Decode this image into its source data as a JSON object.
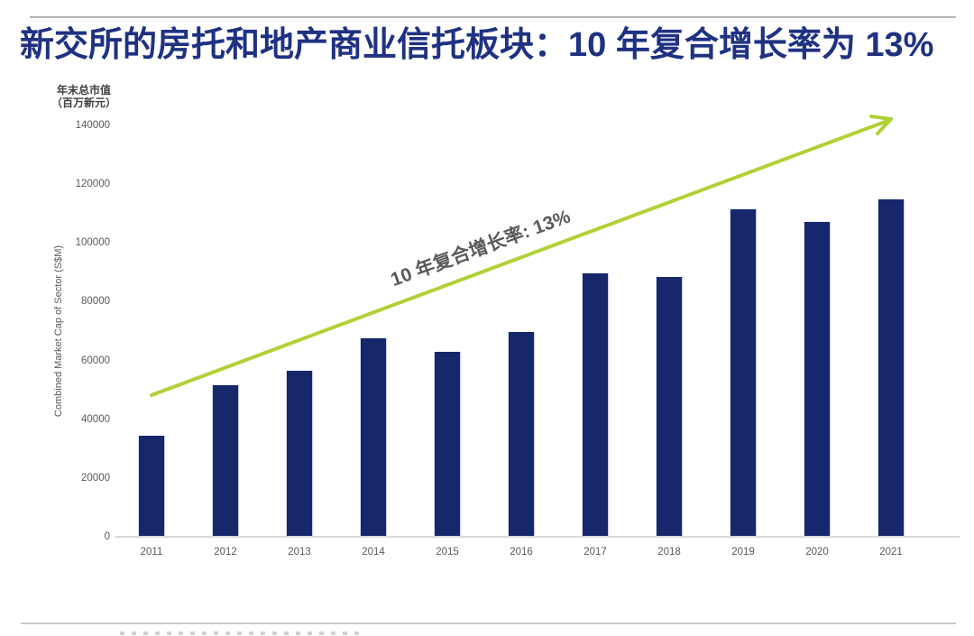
{
  "header": {
    "title": "新交所的房托和地产商业信托板块：10 年复合增长率为 13%"
  },
  "chart_data": {
    "type": "bar",
    "title": "新交所的房托和地产商业信托板块：10 年复合增长率为 13%",
    "y_axis_title_line1": "年末总市值",
    "y_axis_title_line2": "（百万新元）",
    "ylabel": "Combined Market Cap of Sector (S$M)",
    "xlabel": "",
    "categories": [
      "2011",
      "2012",
      "2013",
      "2014",
      "2015",
      "2016",
      "2017",
      "2018",
      "2019",
      "2020",
      "2021"
    ],
    "values": [
      34500,
      51700,
      56600,
      67400,
      62800,
      69800,
      89800,
      88300,
      111400,
      107000,
      114800
    ],
    "ylim": [
      0,
      140000
    ],
    "yticks": [
      0,
      20000,
      40000,
      60000,
      80000,
      100000,
      120000,
      140000
    ],
    "grid": false,
    "legend": "none",
    "annotation_prefix": "10 年复合增长率: ",
    "annotation_value": "13%",
    "bar_color": "#16276b",
    "arrow_color": "#afd136",
    "title_color": "#1f3181",
    "axis_text_color": "#595959"
  }
}
